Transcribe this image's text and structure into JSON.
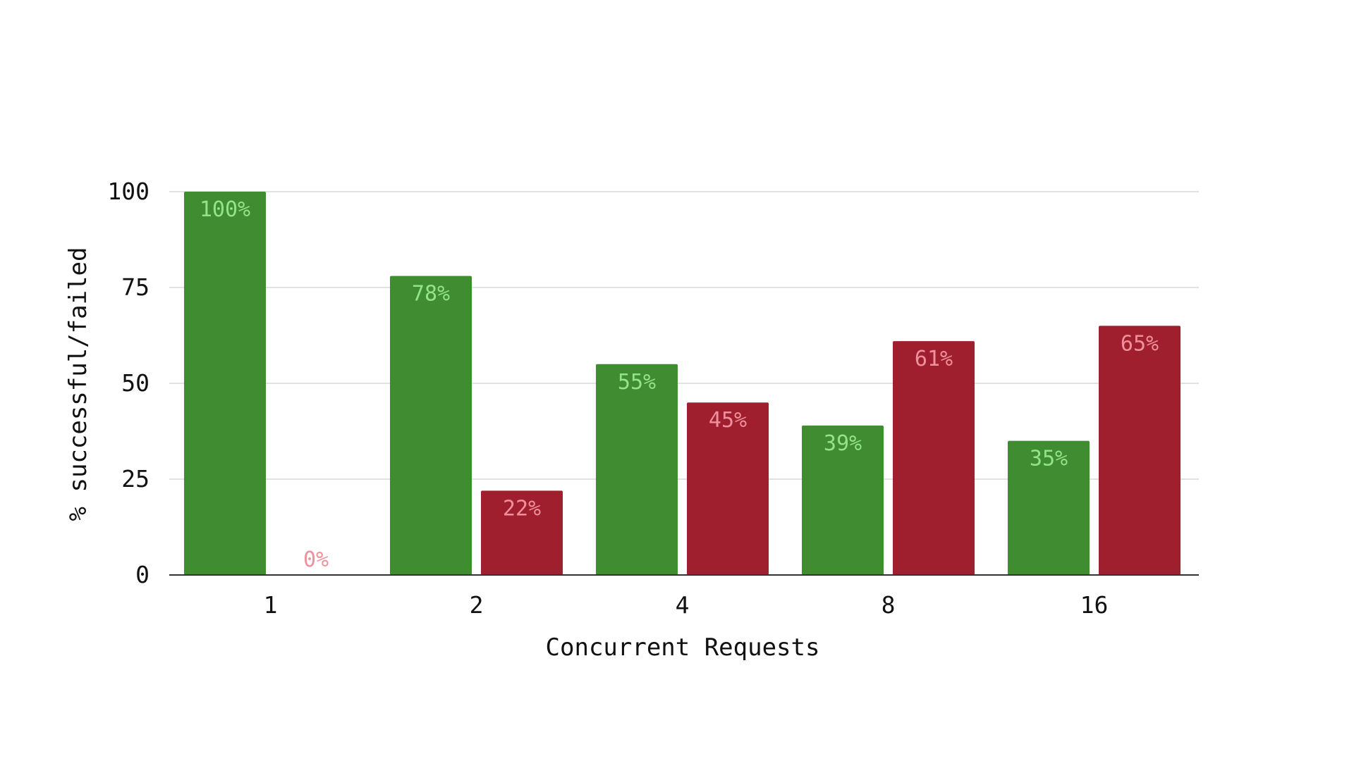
{
  "chart_data": {
    "type": "bar",
    "title": "",
    "xlabel": "Concurrent Requests",
    "ylabel": "% successful/failed",
    "categories": [
      "1",
      "2",
      "4",
      "8",
      "16"
    ],
    "series": [
      {
        "values": [
          100,
          78,
          55,
          39,
          35
        ],
        "labels": [
          "100%",
          "78%",
          "55%",
          "39%",
          "35%"
        ],
        "color": "#3f8c31",
        "label_color": "#92e48a"
      },
      {
        "values": [
          0,
          22,
          45,
          61,
          65
        ],
        "labels": [
          "0%",
          "22%",
          "45%",
          "61%",
          "65%"
        ],
        "color": "#9f1f2e",
        "label_color": "#f0909c"
      }
    ],
    "ylim": [
      0,
      100
    ],
    "yticks": [
      0,
      25,
      50,
      75,
      100
    ],
    "grid": true,
    "legend": "none"
  }
}
